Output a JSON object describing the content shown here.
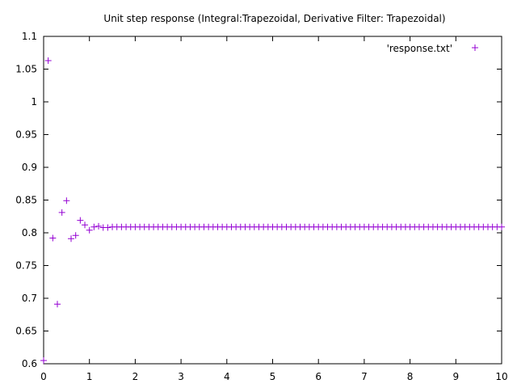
{
  "chart_data": {
    "type": "scatter",
    "title": "Unit step response (Integral:Trapezoidal, Derivative Filter: Trapezoidal)",
    "xlabel": "",
    "ylabel": "",
    "xlim": [
      0,
      10
    ],
    "ylim": [
      0.6,
      1.1
    ],
    "x_ticks": [
      0,
      1,
      2,
      3,
      4,
      5,
      6,
      7,
      8,
      9,
      10
    ],
    "x_tick_labels": [
      "0",
      "1",
      "2",
      "3",
      "4",
      "5",
      "6",
      "7",
      "8",
      "9",
      "10"
    ],
    "y_ticks": [
      0.6,
      0.65,
      0.7,
      0.75,
      0.8,
      0.85,
      0.9,
      0.95,
      1,
      1.05,
      1.1
    ],
    "y_tick_labels": [
      "0.6",
      "0.65",
      "0.7",
      "0.75",
      "0.8",
      "0.85",
      "0.9",
      "0.95",
      "1",
      "1.05",
      "1.1"
    ],
    "grid": false,
    "legend_position": "top-right",
    "marker": "plus",
    "color": "#9400d3",
    "series": [
      {
        "name": "'response.txt'",
        "x": [
          0,
          0.1,
          0.2,
          0.3,
          0.4,
          0.5,
          0.6,
          0.7,
          0.8,
          0.9,
          1.0,
          1.1,
          1.2,
          1.3,
          1.4,
          1.5,
          1.6,
          1.7,
          1.8,
          1.9,
          2.0,
          2.1,
          2.2,
          2.3,
          2.4,
          2.5,
          2.6,
          2.7,
          2.8,
          2.9,
          3.0,
          3.1,
          3.2,
          3.3,
          3.4,
          3.5,
          3.6,
          3.7,
          3.8,
          3.9,
          4.0,
          4.1,
          4.2,
          4.3,
          4.4,
          4.5,
          4.6,
          4.7,
          4.8,
          4.9,
          5.0,
          5.1,
          5.2,
          5.3,
          5.4,
          5.5,
          5.6,
          5.7,
          5.8,
          5.9,
          6.0,
          6.1,
          6.2,
          6.3,
          6.4,
          6.5,
          6.6,
          6.7,
          6.8,
          6.9,
          7.0,
          7.1,
          7.2,
          7.3,
          7.4,
          7.5,
          7.6,
          7.7,
          7.8,
          7.9,
          8.0,
          8.1,
          8.2,
          8.3,
          8.4,
          8.5,
          8.6,
          8.7,
          8.8,
          8.9,
          9.0,
          9.1,
          9.2,
          9.3,
          9.4,
          9.5,
          9.6,
          9.7,
          9.8,
          9.9,
          10.0
        ],
        "y": [
          0.605,
          1.063,
          0.792,
          0.691,
          0.831,
          0.849,
          0.791,
          0.796,
          0.819,
          0.812,
          0.804,
          0.809,
          0.81,
          0.808,
          0.808,
          0.809,
          0.809,
          0.809,
          0.809,
          0.809,
          0.809,
          0.809,
          0.809,
          0.809,
          0.809,
          0.809,
          0.809,
          0.809,
          0.809,
          0.809,
          0.809,
          0.809,
          0.809,
          0.809,
          0.809,
          0.809,
          0.809,
          0.809,
          0.809,
          0.809,
          0.809,
          0.809,
          0.809,
          0.809,
          0.809,
          0.809,
          0.809,
          0.809,
          0.809,
          0.809,
          0.809,
          0.809,
          0.809,
          0.809,
          0.809,
          0.809,
          0.809,
          0.809,
          0.809,
          0.809,
          0.809,
          0.809,
          0.809,
          0.809,
          0.809,
          0.809,
          0.809,
          0.809,
          0.809,
          0.809,
          0.809,
          0.809,
          0.809,
          0.809,
          0.809,
          0.809,
          0.809,
          0.809,
          0.809,
          0.809,
          0.809,
          0.809,
          0.809,
          0.809,
          0.809,
          0.809,
          0.809,
          0.809,
          0.809,
          0.809,
          0.809,
          0.809,
          0.809,
          0.809,
          0.809,
          0.809,
          0.809,
          0.809,
          0.809,
          0.809,
          0.809
        ]
      }
    ]
  }
}
